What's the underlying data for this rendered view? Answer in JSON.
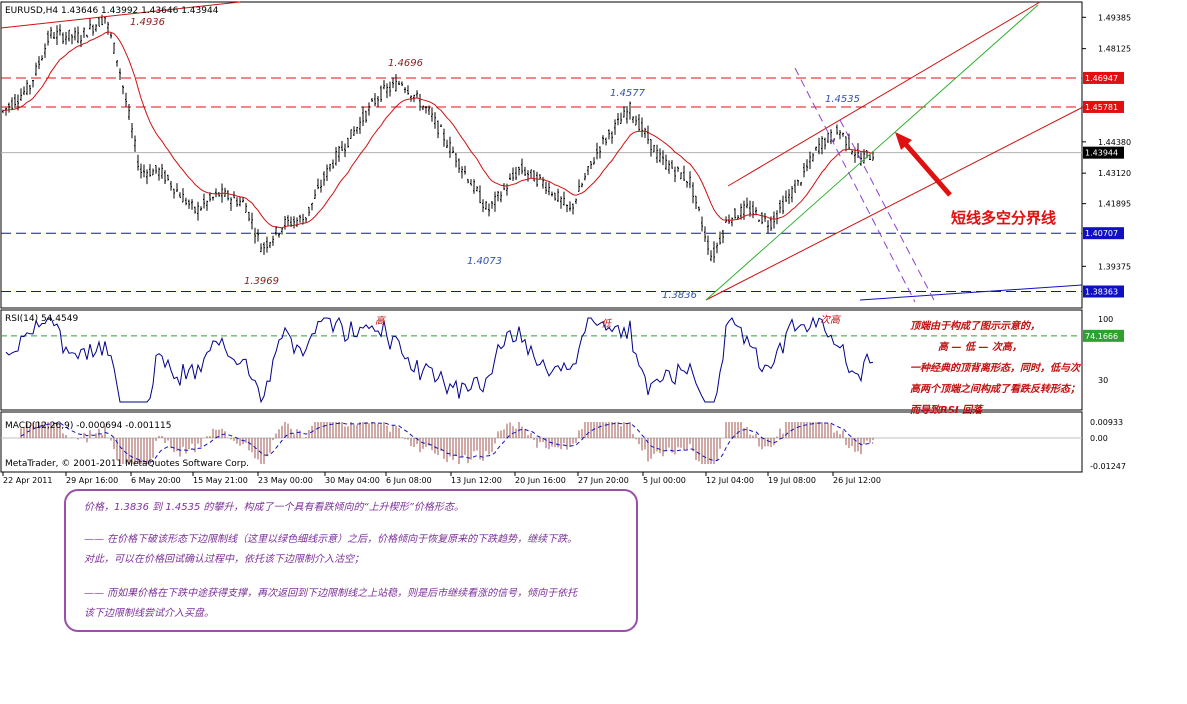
{
  "header": {
    "symbol_line": "EURUSD,H4  1.43646 1.43992 1.43646 1.43944",
    "rsi_title": "RSI(14) 54.4549",
    "macd_title": "MACD(12,26,9) -0.000694 -0.001115",
    "copyright": "MetaTrader, © 2001-2011 MetaQuotes Software Corp."
  },
  "chart_data": [
    {
      "type": "candlestick",
      "title": "EURUSD,H4",
      "y_ticks": [
        "1.49385",
        "1.48125",
        "1.44380",
        "1.43120",
        "1.41895",
        "1.39375"
      ],
      "price_markers": [
        {
          "label": "1.46947",
          "color": "#e01010"
        },
        {
          "label": "1.45781",
          "color": "#e01010"
        },
        {
          "label": "1.43944",
          "color": "#000000"
        },
        {
          "label": "1.40707",
          "color": "#1010c0"
        },
        {
          "label": "1.38363",
          "color": "#1010c0"
        }
      ],
      "price_labels": [
        {
          "text": "1.4936",
          "color": "#8b1a1a"
        },
        {
          "text": "1.4696",
          "color": "#8b1a1a"
        },
        {
          "text": "1.4577",
          "color": "#3050b0"
        },
        {
          "text": "1.4535",
          "color": "#3050b0"
        },
        {
          "text": "1.3969",
          "color": "#8b1a1a"
        },
        {
          "text": "1.4073",
          "color": "#3050b0"
        },
        {
          "text": "1.3836",
          "color": "#3050b0"
        }
      ],
      "x_labels": [
        "22 Apr 2011",
        "29 Apr 16:00",
        "6 May 20:00",
        "15 May 21:00",
        "23 May 00:00",
        "30 May 04:00",
        "6 Jun 08:00",
        "13 Jun 12:00",
        "20 Jun 16:00",
        "27 Jun 20:00",
        "5 Jul 00:00",
        "12 Jul 04:00",
        "19 Jul 08:00",
        "26 Jul 12:00"
      ],
      "ylim": [
        1.377,
        1.5
      ],
      "horizontal_lines": [
        {
          "value": 1.46947,
          "color": "#e01010",
          "style": "dashed"
        },
        {
          "value": 1.45781,
          "color": "#e01010",
          "style": "dashed"
        },
        {
          "value": 1.40707,
          "color": "#1010c0",
          "style": "dashed"
        },
        {
          "value": 1.38363,
          "color": "#1010c0",
          "style": "dashed"
        }
      ],
      "callout": "短线多空分界线"
    },
    {
      "type": "line",
      "title": "RSI(14)",
      "y_ticks": [
        "100",
        "30"
      ],
      "marker": "74.1666",
      "peak_labels": [
        "高",
        "低",
        "次高"
      ]
    },
    {
      "type": "histogram",
      "title": "MACD(12,26,9)",
      "y_ticks": [
        "0.00933",
        "0.00",
        "-0.01247"
      ]
    }
  ],
  "side_annotation": {
    "lines": [
      "顶端由于构成了图示示意的，",
      "高 — 低 — 次高，",
      "一种经典的顶背离形态，同时，低与次",
      "高两个顶端之间构成了看跌反转形态；",
      "而导致RSI 回落"
    ]
  },
  "notes": {
    "line1": "价格，1.3836 到 1.4535 的攀升，构成了一个具有看跌倾向的“上升楔形”价格形态。",
    "line2": "—— 在价格下破该形态下边限制线（这里以绿色细线示意）之后，价格倾向于恢复原来的下跌趋势，继续下跌。",
    "line3": "对此，可以在价格回试确认过程中，依托该下边限制介入沽空；",
    "line4": "—— 而如果价格在下跌中途获得支撑，再次返回到下边限制线之上站稳，则是后市继续看涨的信号，倾向于依托",
    "line5": "该下边限制线尝试介入买盘。"
  }
}
